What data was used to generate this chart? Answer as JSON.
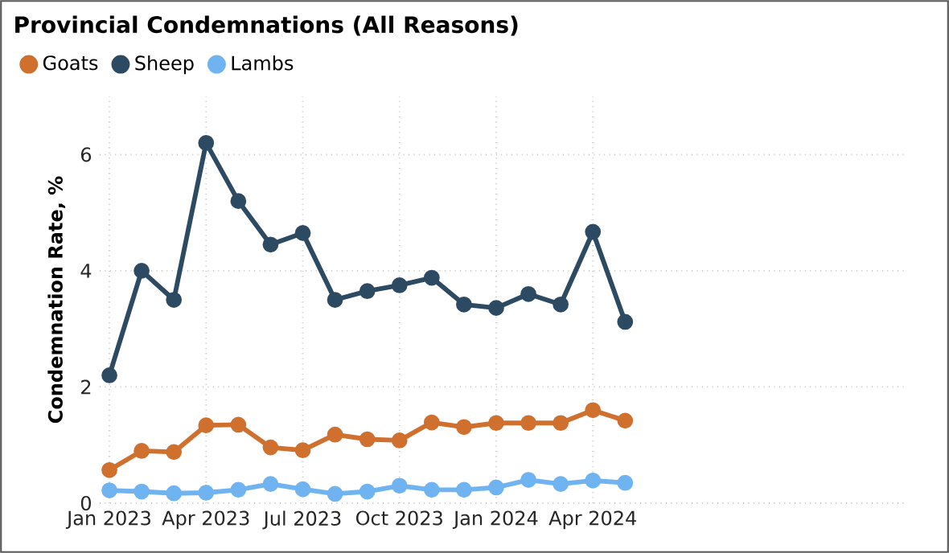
{
  "chart_data": {
    "type": "line",
    "title": "Provincial Condemnations (All Reasons)",
    "ylabel": "Condemnation Rate, %",
    "x": [
      "2023-01",
      "2023-02",
      "2023-03",
      "2023-04",
      "2023-05",
      "2023-06",
      "2023-07",
      "2023-08",
      "2023-09",
      "2023-10",
      "2023-11",
      "2023-12",
      "2024-01",
      "2024-02",
      "2024-03",
      "2024-04",
      "2024-05"
    ],
    "series": [
      {
        "name": "Goats",
        "color": "#d0702e",
        "values": [
          0.57,
          0.9,
          0.88,
          1.34,
          1.35,
          0.96,
          0.91,
          1.18,
          1.1,
          1.08,
          1.39,
          1.31,
          1.38,
          1.38,
          1.38,
          1.6,
          1.42
        ]
      },
      {
        "name": "Sheep",
        "color": "#2d4a63",
        "values": [
          2.2,
          4.0,
          3.5,
          6.2,
          5.2,
          4.45,
          4.65,
          3.5,
          3.65,
          3.75,
          3.88,
          3.42,
          3.36,
          3.6,
          3.42,
          4.67,
          3.12
        ]
      },
      {
        "name": "Lambs",
        "color": "#6fb3f0",
        "values": [
          0.22,
          0.2,
          0.17,
          0.18,
          0.23,
          0.33,
          0.24,
          0.16,
          0.2,
          0.3,
          0.23,
          0.23,
          0.27,
          0.4,
          0.33,
          0.39,
          0.35
        ]
      }
    ],
    "xlim": [
      "2022-12-22",
      "2025-01-22"
    ],
    "xticks": [
      {
        "value": "2023-01",
        "label": "Jan 2023"
      },
      {
        "value": "2023-04",
        "label": "Apr 2023"
      },
      {
        "value": "2023-07",
        "label": "Jul 2023"
      },
      {
        "value": "2023-10",
        "label": "Oct 2023"
      },
      {
        "value": "2024-01",
        "label": "Jan 2024"
      },
      {
        "value": "2024-04",
        "label": "Apr 2024"
      }
    ],
    "ylim": [
      0,
      7
    ],
    "yticks": [
      0,
      2,
      4,
      6
    ],
    "grid": true,
    "legend": "top left",
    "marker": "circle",
    "line_style": "solid"
  }
}
